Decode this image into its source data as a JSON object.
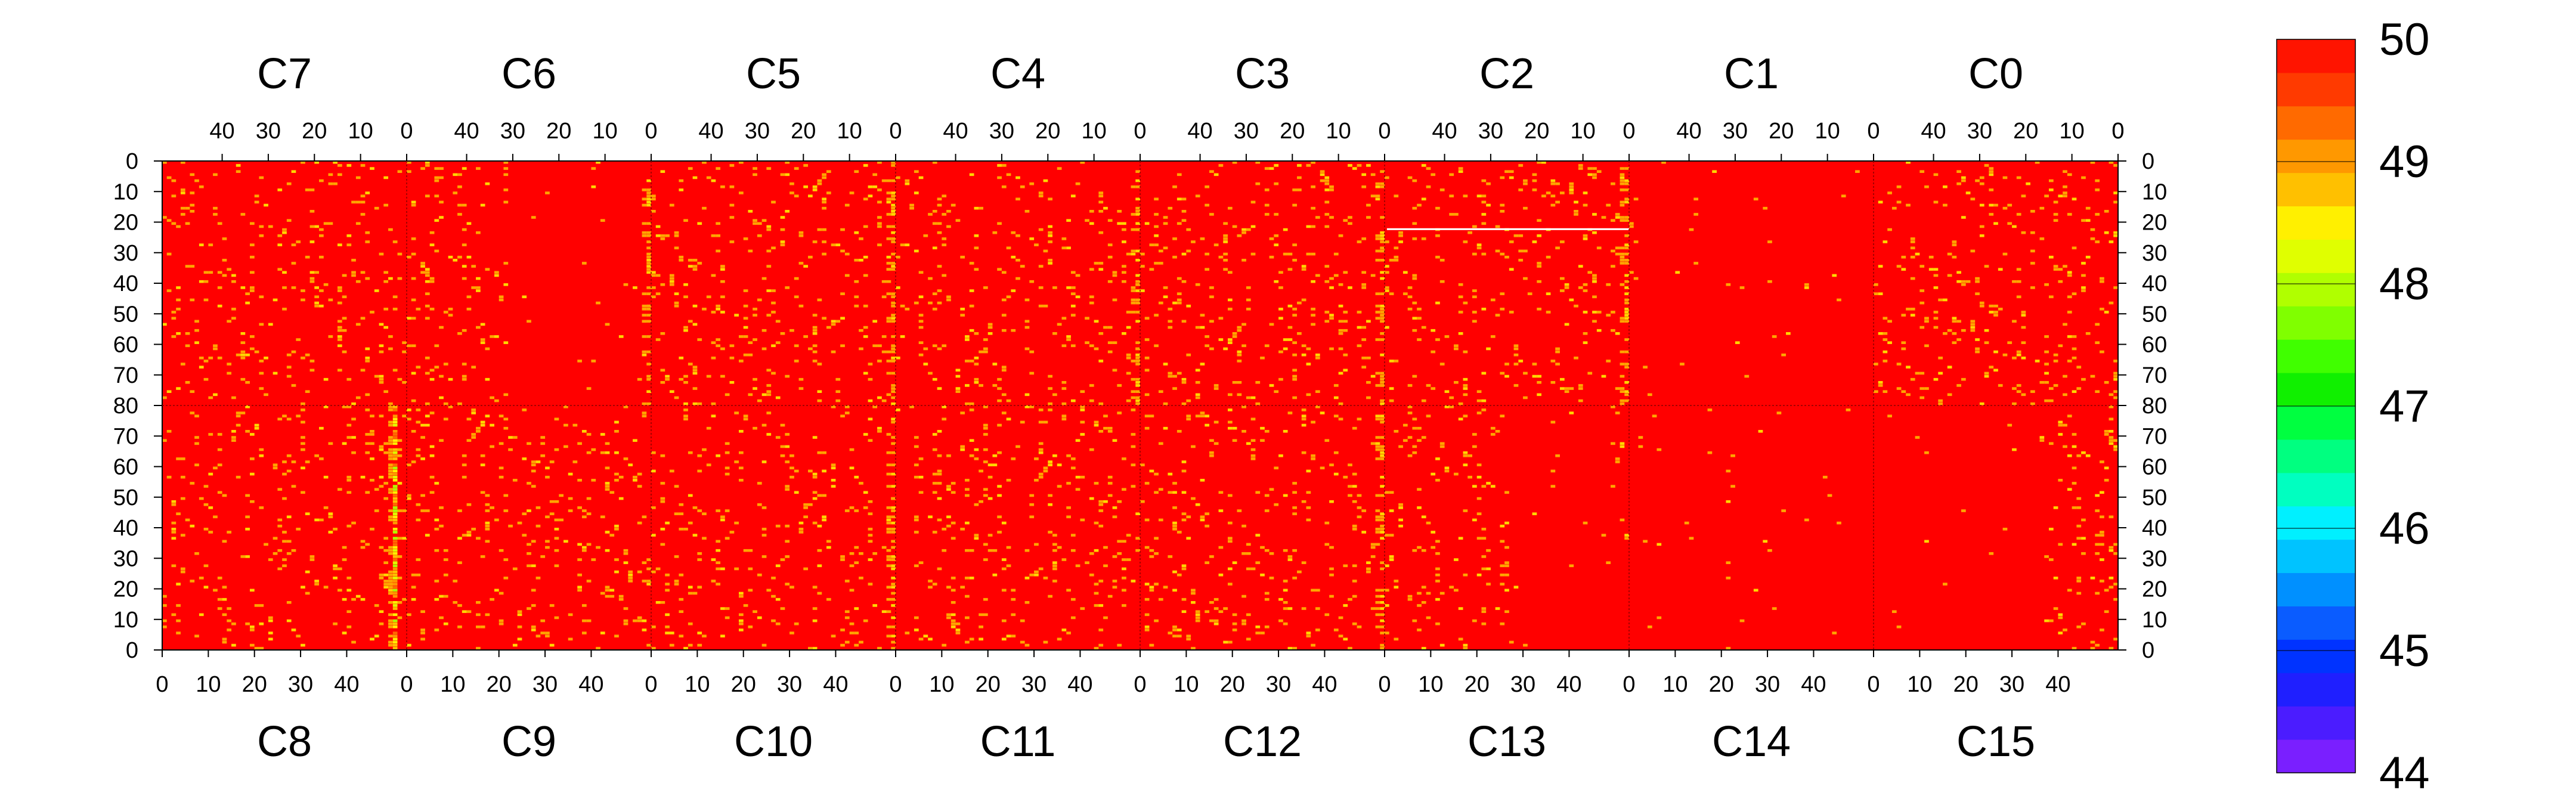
{
  "chart_data": {
    "type": "heatmap",
    "title": "",
    "top_channels": [
      "C7",
      "C6",
      "C5",
      "C4",
      "C3",
      "C2",
      "C1",
      "C0"
    ],
    "bottom_channels": [
      "C8",
      "C9",
      "C10",
      "C11",
      "C12",
      "C13",
      "C14",
      "C15"
    ],
    "channel_x_range": [
      0,
      53
    ],
    "channel_x_ticks": [
      "0",
      "10",
      "20",
      "30",
      "40"
    ],
    "top_x_direction": "reversed",
    "bottom_x_direction": "normal",
    "top_row_range": [
      0,
      80
    ],
    "bottom_row_range": [
      0,
      80
    ],
    "row_tick_labels_top": [
      "0",
      "10",
      "20",
      "30",
      "40",
      "50",
      "60",
      "70",
      "80"
    ],
    "row_tick_labels_bottom": [
      "70",
      "60",
      "50",
      "40",
      "30",
      "20",
      "10",
      "0"
    ],
    "zlim": [
      44,
      50
    ],
    "colorbar_tick_labels": [
      "50",
      "49",
      "48",
      "47",
      "46",
      "45",
      "44"
    ],
    "colorbar_levels": [
      "#7a1fff",
      "#4b1cff",
      "#1f1fff",
      "#0033ff",
      "#0a5cff",
      "#0090ff",
      "#00c3ff",
      "#00f0ff",
      "#00ffc0",
      "#00ff80",
      "#00ff40",
      "#10f000",
      "#40ff00",
      "#80ff00",
      "#b0ff00",
      "#e0ff00",
      "#fff000",
      "#ffc000",
      "#ff9800",
      "#ff6a00",
      "#ff3a00",
      "#ff1400"
    ],
    "dominant_value": 50,
    "dominant_color": "#ff0000",
    "noise_color_primary": "#ffa500",
    "noise_color_secondary": "#ffd700",
    "hot_columns": [
      {
        "panel": "C6",
        "channel_x": 0,
        "rows": [
          0,
          80
        ],
        "density": 0.35
      },
      {
        "panel": "C5",
        "channel_x": 0,
        "rows": [
          0,
          80
        ],
        "density": 0.35
      },
      {
        "panel": "C4",
        "channel_x": 0,
        "rows": [
          0,
          80
        ],
        "density": 0.35
      },
      {
        "panel": "C3",
        "channel_x": 0,
        "rows": [
          0,
          80
        ],
        "density": 0.35
      },
      {
        "panel": "C2",
        "channel_x": 0,
        "rows": [
          0,
          80
        ],
        "density": 0.4
      },
      {
        "panel": "C8",
        "channel_x": 50,
        "rows": [
          0,
          80
        ],
        "density": 0.9,
        "min_value": 47.8
      },
      {
        "panel": "C10",
        "channel_x": 52,
        "rows": [
          0,
          80
        ],
        "density": 0.35
      },
      {
        "panel": "C12",
        "channel_x": 52,
        "rows": [
          0,
          80
        ],
        "density": 0.35
      }
    ],
    "white_stripe": {
      "panel": "C2",
      "row": 22,
      "x_range": [
        53,
        0
      ]
    },
    "quiet_regions": [
      {
        "panel": "C6",
        "x_range": [
          30,
          0
        ]
      },
      {
        "panel": "C1"
      },
      {
        "panel": "C13",
        "x_range": [
          27,
          53
        ]
      },
      {
        "panel": "C14"
      },
      {
        "panel": "C15",
        "x_range": [
          0,
          35
        ]
      },
      {
        "panel": "C11",
        "x_range": [
          0,
          3
        ]
      }
    ]
  }
}
